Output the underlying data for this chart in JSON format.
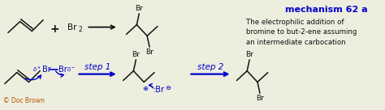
{
  "bg_color": "#eeeedf",
  "title_text": "mechanism 62 a",
  "title_color": "#0000cc",
  "title_fontsize": 8,
  "description_text": "The electrophilic addition of\nbromine to but-2-ene assuming\nan intermediate carbocation",
  "description_color": "#111111",
  "description_fontsize": 6.2,
  "doc_brown_text": "© Doc Brown",
  "doc_brown_color": "#bb5500",
  "doc_brown_fontsize": 5.5,
  "step1_text": "step 1",
  "step2_text": "step 2",
  "step_color": "#0000cc",
  "step_fontsize": 7.5,
  "arrow_color": "#0000cc",
  "black": "#111111",
  "blue": "#0000cc",
  "line_color": "#111111",
  "line_width": 1.1
}
